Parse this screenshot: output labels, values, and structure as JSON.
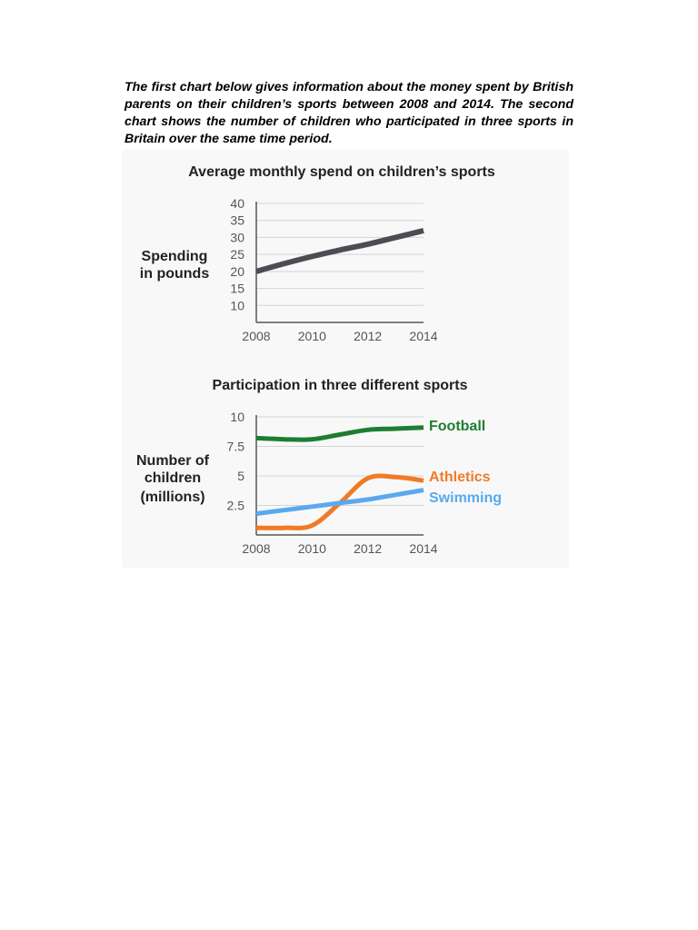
{
  "intro": "The first chart below gives information about the money spent by British parents on their children’s sports between 2008 and 2014. The second chart shows the number of children who participated in three sports in Britain over the same time period.",
  "chart_data": [
    {
      "type": "line",
      "title": "Average monthly spend on children’s sports",
      "xlabel": "",
      "ylabel": "Spending in pounds",
      "ylabel_lines": [
        "Spending",
        "in pounds"
      ],
      "x": [
        2008,
        2009,
        2010,
        2011,
        2012,
        2013,
        2014
      ],
      "xticks": [
        "2008",
        "2010",
        "2012",
        "2014"
      ],
      "yticks": [
        "40",
        "35",
        "30",
        "25",
        "20",
        "15",
        "10"
      ],
      "ylim": [
        5,
        40
      ],
      "grid": true,
      "series": [
        {
          "name": "Spending",
          "color": "#4a4d52",
          "values": [
            20,
            22.3,
            24.4,
            26.3,
            28,
            30,
            32
          ]
        }
      ]
    },
    {
      "type": "line",
      "title": "Participation in three different sports",
      "xlabel": "",
      "ylabel": "Number of children (millions)",
      "ylabel_lines": [
        "Number of",
        "children",
        "(millions)"
      ],
      "x": [
        2008,
        2009,
        2010,
        2011,
        2012,
        2013,
        2014
      ],
      "xticks": [
        "2008",
        "2010",
        "2012",
        "2014"
      ],
      "yticks": [
        "10",
        "7.5",
        "5",
        "2.5"
      ],
      "ylim": [
        0,
        10
      ],
      "grid": true,
      "legend": "right-of-lines",
      "series": [
        {
          "name": "Football",
          "color": "#1e7d32",
          "values": [
            8.2,
            8.1,
            8.1,
            8.5,
            8.9,
            9.0,
            9.1
          ]
        },
        {
          "name": "Athletics",
          "color": "#f07a26",
          "values": [
            0.6,
            0.6,
            0.8,
            2.7,
            4.8,
            4.9,
            4.6
          ]
        },
        {
          "name": "Swimming",
          "color": "#5aa9ef",
          "values": [
            1.8,
            2.1,
            2.4,
            2.7,
            3.0,
            3.4,
            3.8
          ]
        }
      ]
    }
  ]
}
